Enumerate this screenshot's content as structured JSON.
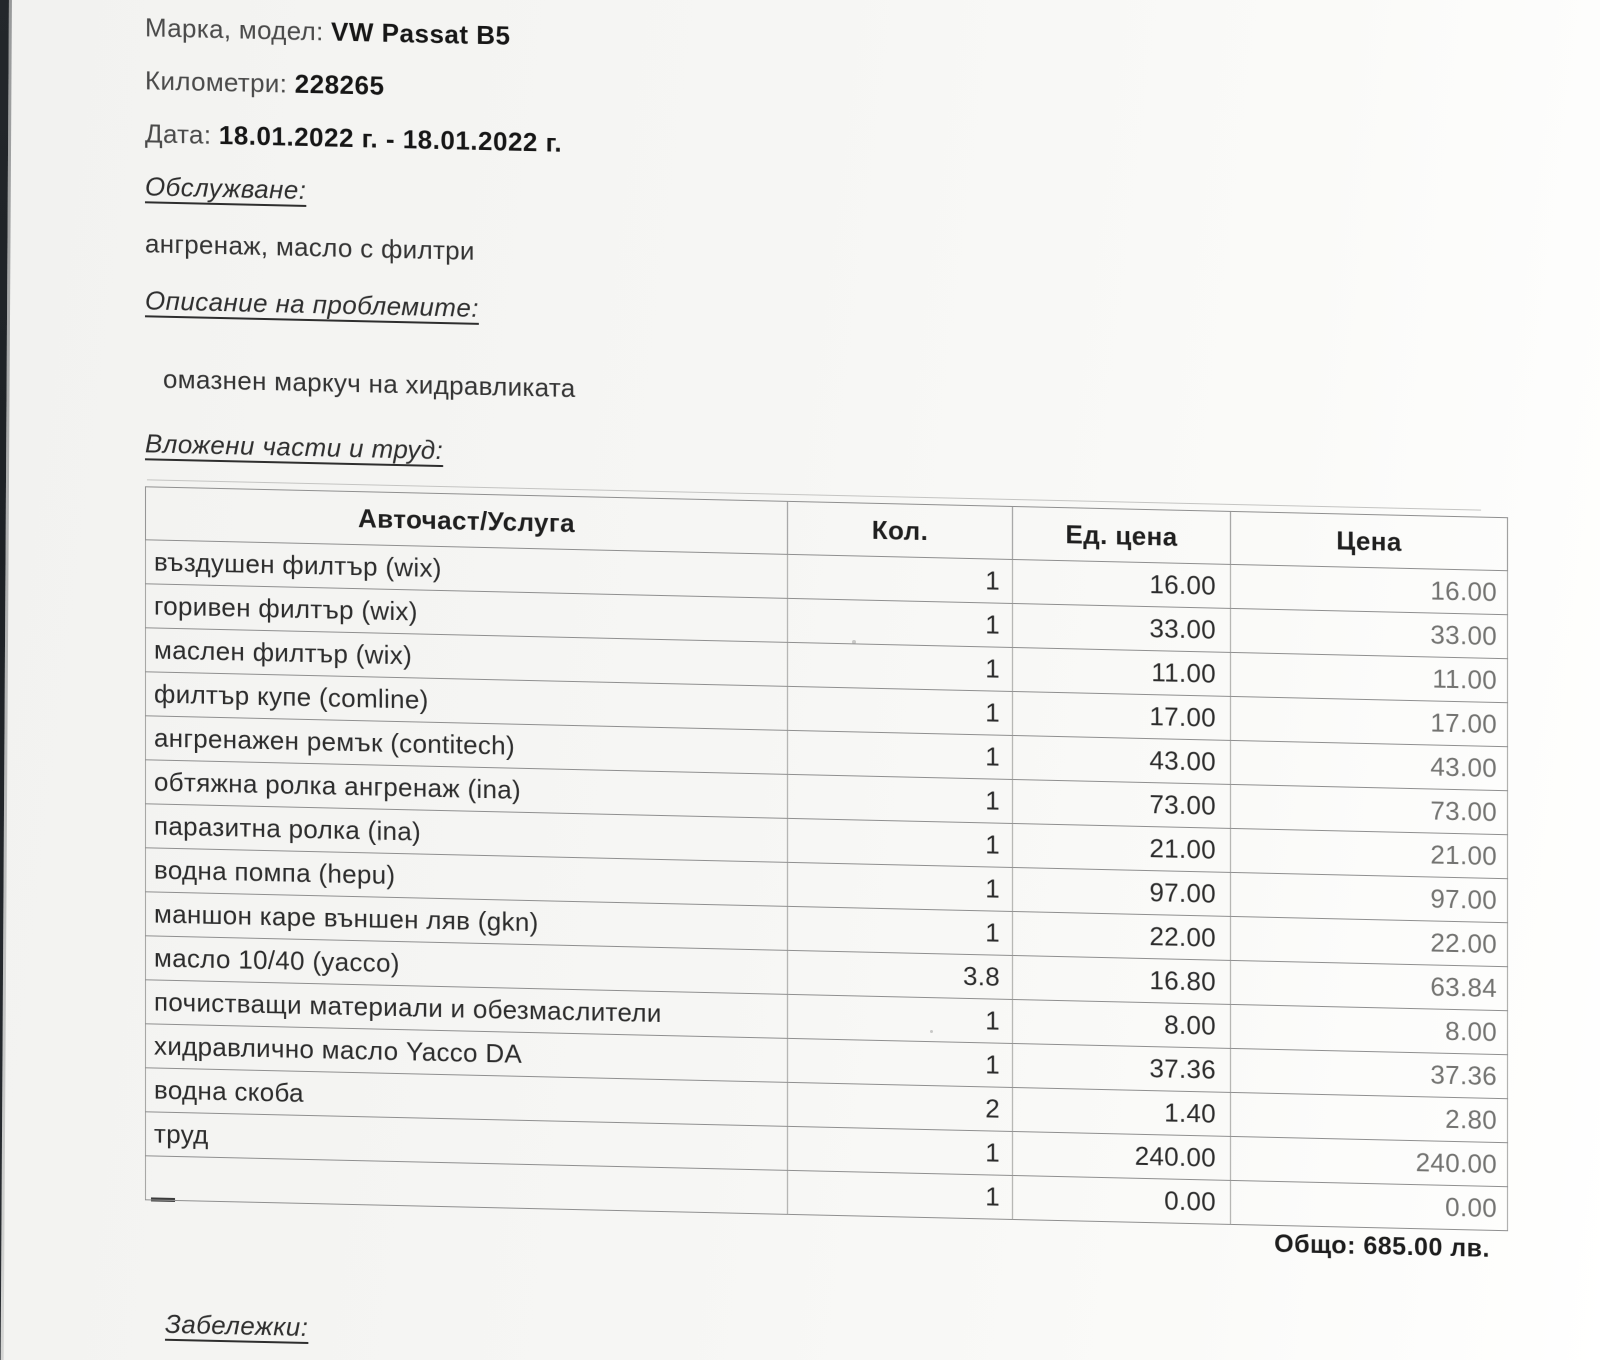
{
  "document": {
    "fields": [
      {
        "label": "Марка, модел:",
        "value": "VW Passat B5"
      },
      {
        "label": "Километри:",
        "value": "228265"
      },
      {
        "label": "Дата:",
        "value": "18.01.2022 г. - 18.01.2022 г."
      }
    ],
    "sections": [
      {
        "heading": "Обслужване:",
        "text": "ангренаж, масло с филтри"
      },
      {
        "heading": "Описание на проблемите:",
        "text": "омазнен маркуч на хидравликата"
      },
      {
        "heading": "Вложени части и труд:"
      },
      {
        "heading": "Забележки:"
      }
    ],
    "table": {
      "headers": [
        "Авточаст/Услуга",
        "Кол.",
        "Ед. цена",
        "Цена"
      ],
      "rows": [
        [
          "въздушен филтър (wix)",
          "1",
          "16.00",
          "16.00"
        ],
        [
          "горивен филтър (wix)",
          "1",
          "33.00",
          "33.00"
        ],
        [
          "маслен филтър (wix)",
          "1",
          "11.00",
          "11.00"
        ],
        [
          "филтър купе (comline)",
          "1",
          "17.00",
          "17.00"
        ],
        [
          "ангренажен ремък (contitech)",
          "1",
          "43.00",
          "43.00"
        ],
        [
          "обтяжна ролка ангренаж (ina)",
          "1",
          "73.00",
          "73.00"
        ],
        [
          "паразитна ролка (ina)",
          "1",
          "21.00",
          "21.00"
        ],
        [
          "водна помпа (hepu)",
          "1",
          "97.00",
          "97.00"
        ],
        [
          "маншон каре външен ляв (gkn)",
          "1",
          "22.00",
          "22.00"
        ],
        [
          "масло 10/40 (yacco)",
          "3.8",
          "16.80",
          "63.84"
        ],
        [
          "почистващи материали и обезмаслители",
          "1",
          "8.00",
          "8.00"
        ],
        [
          "хидравлично масло Yacco DA",
          "1",
          "37.36",
          "37.36"
        ],
        [
          "водна скоба",
          "2",
          "1.40",
          "2.80"
        ],
        [
          "труд",
          "1",
          "240.00",
          "240.00"
        ],
        [
          "",
          "1",
          "0.00",
          "0.00"
        ]
      ]
    },
    "total": {
      "label": "Общо:",
      "value": "685.00 лв."
    },
    "colors": {
      "ink": "#2a2a2a",
      "faded_ink": "#737371",
      "paper": "#f6f6f4",
      "grid_line": "#8f8f8f"
    }
  }
}
